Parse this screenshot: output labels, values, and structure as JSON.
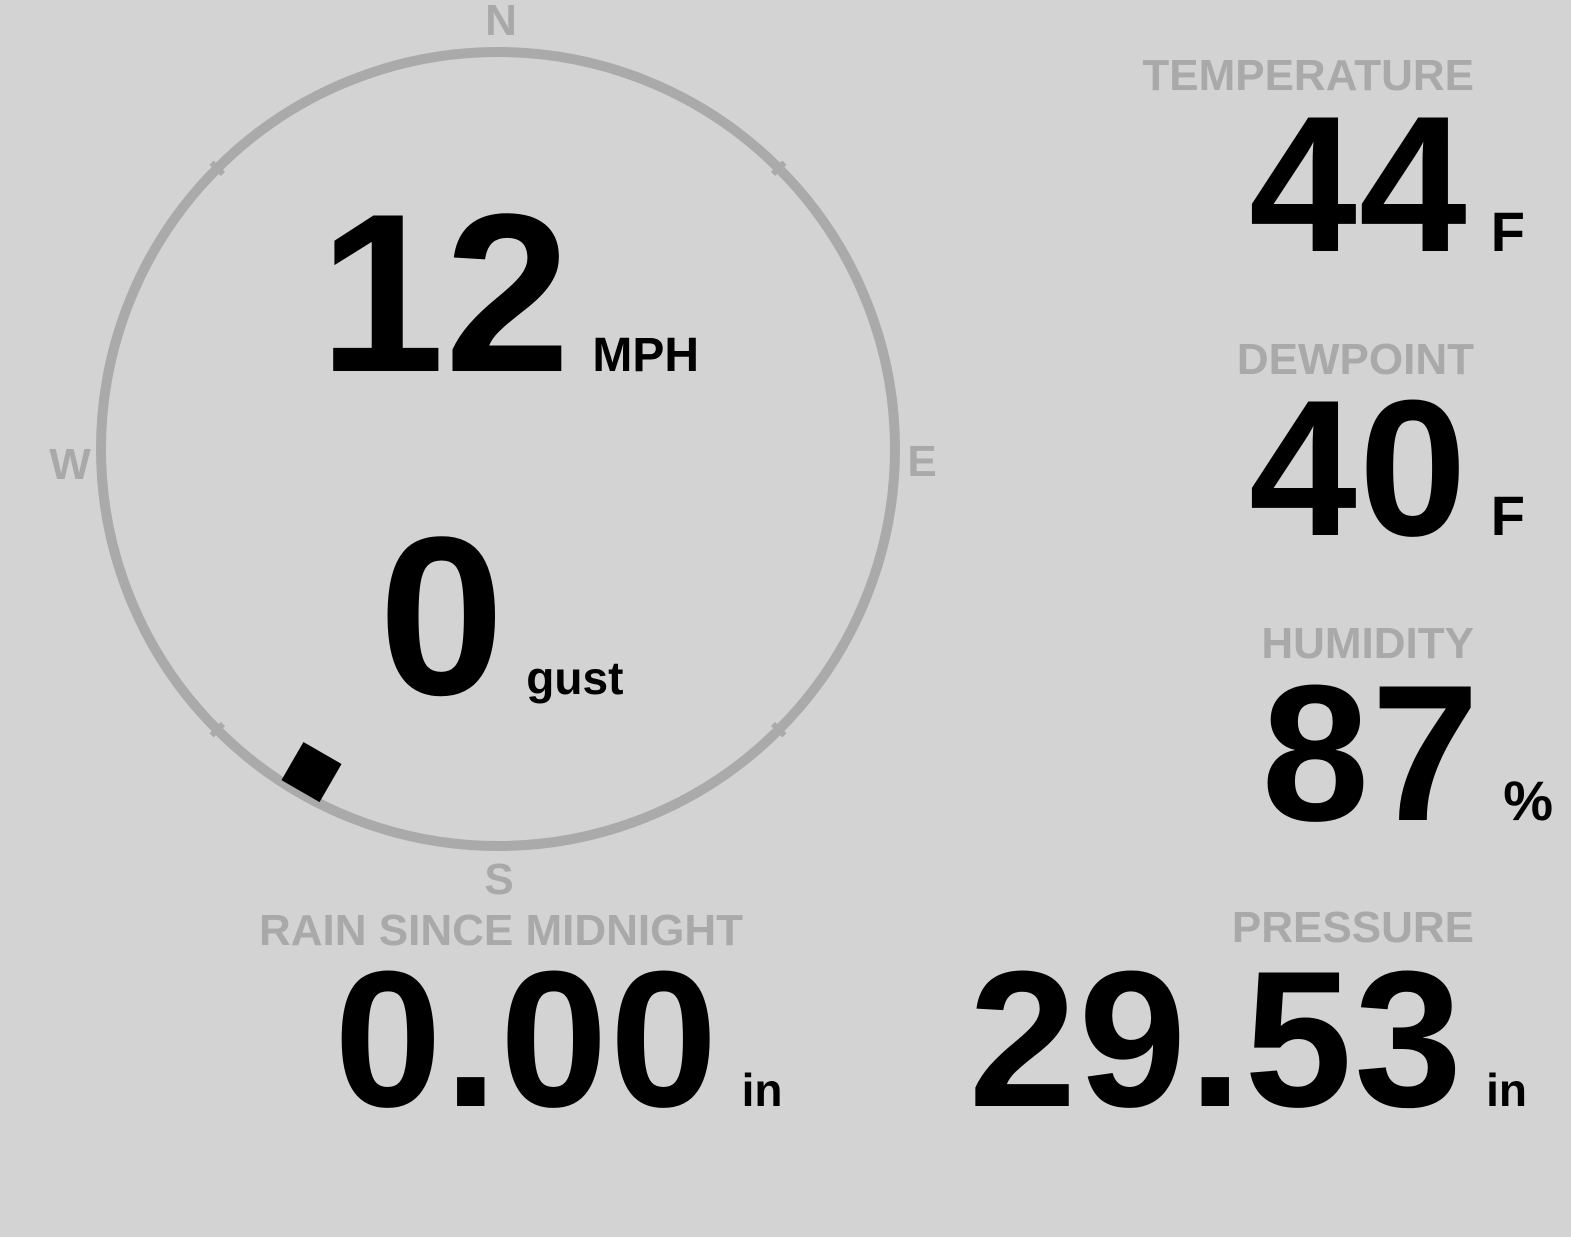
{
  "wind": {
    "speed": "12",
    "speed_unit": "MPH",
    "gust": "0",
    "gust_label": "gust",
    "direction_deg": 210,
    "compass": {
      "n": "N",
      "e": "E",
      "s": "S",
      "w": "W"
    }
  },
  "temperature": {
    "label": "TEMPERATURE",
    "value": "44",
    "unit": "F"
  },
  "dewpoint": {
    "label": "DEWPOINT",
    "value": "40",
    "unit": "F"
  },
  "humidity": {
    "label": "HUMIDITY",
    "value": "87",
    "unit": "%"
  },
  "pressure": {
    "label": "PRESSURE",
    "value": "29.53",
    "unit": "in"
  },
  "rain": {
    "label": "RAIN SINCE MIDNIGHT",
    "value": "0.00",
    "unit": "in"
  },
  "colors": {
    "background": "#d3d3d3",
    "label": "#a9a9a9",
    "value": "#000000",
    "dial": "#aaaaaa"
  }
}
